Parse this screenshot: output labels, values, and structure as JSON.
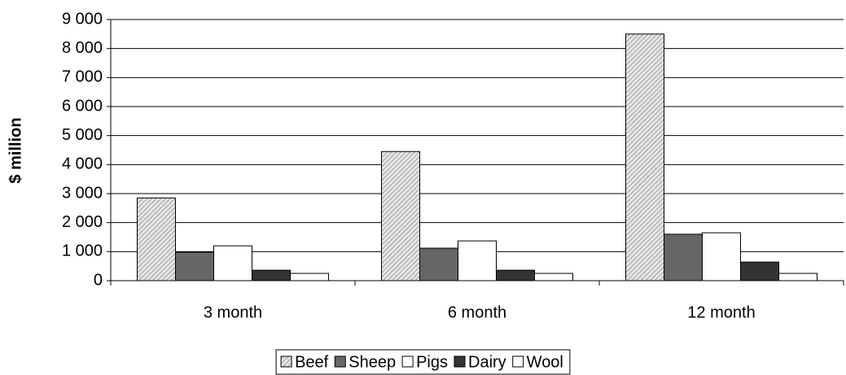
{
  "chart_data": {
    "type": "bar",
    "y_label": "$ million",
    "categories": [
      "3 month",
      "6 month",
      "12 month"
    ],
    "series": [
      {
        "name": "Beef",
        "color": "#d0d0d0",
        "hatch": true,
        "values": [
          2850,
          4450,
          8500
        ]
      },
      {
        "name": "Sheep",
        "color": "#666666",
        "values": [
          980,
          1120,
          1600
        ]
      },
      {
        "name": "Pigs",
        "color": "#ffffff",
        "values": [
          1200,
          1370,
          1650
        ]
      },
      {
        "name": "Dairy",
        "color": "#333333",
        "values": [
          360,
          360,
          640
        ]
      },
      {
        "name": "Wool",
        "color": "#ffffff",
        "values": [
          250,
          250,
          250
        ]
      }
    ],
    "ylim": [
      0,
      9000
    ],
    "yticks": [
      0,
      {
        "value": 1000,
        "label": "1 000"
      },
      {
        "value": 2000,
        "label": "2 000"
      },
      {
        "value": 3000,
        "label": "3 000"
      },
      {
        "value": 4000,
        "label": "4 000"
      },
      {
        "value": 5000,
        "label": "5 000"
      },
      {
        "value": 6000,
        "label": "6 000"
      },
      {
        "value": 7000,
        "label": "7 000"
      },
      {
        "value": 8000,
        "label": "8 000"
      },
      {
        "value": 9000,
        "label": "9 000"
      }
    ],
    "grid": true,
    "legend": "bottom"
  }
}
